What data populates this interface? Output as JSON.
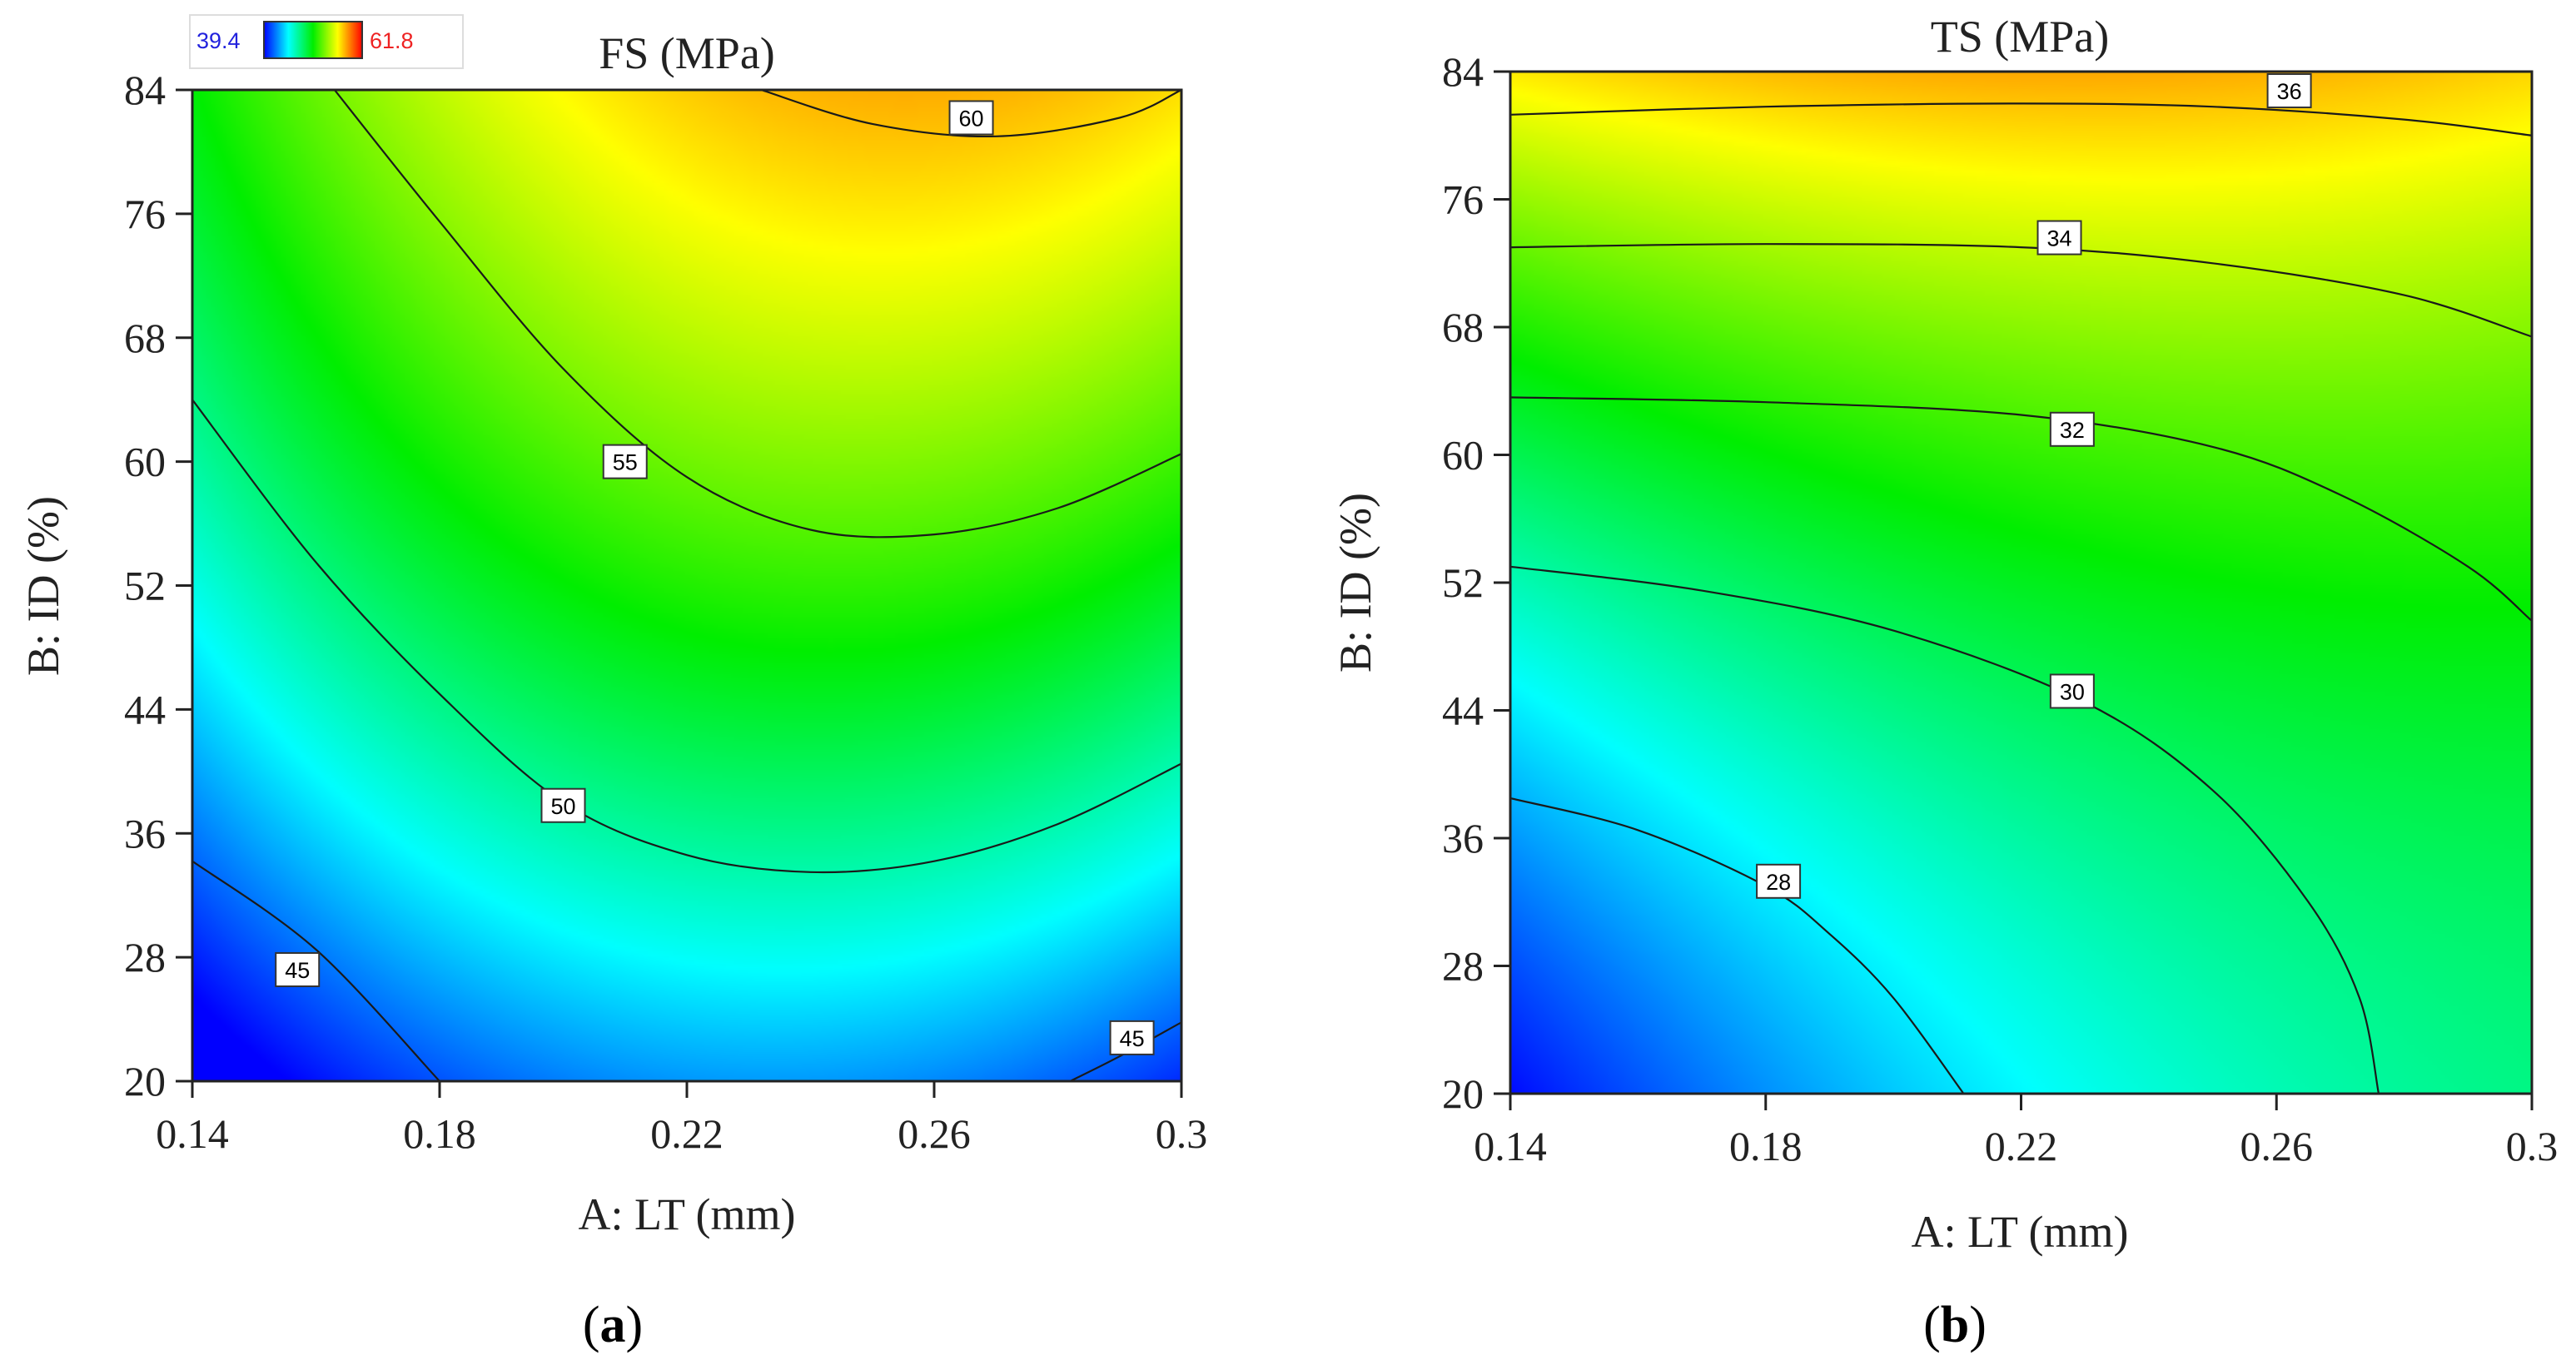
{
  "colors": {
    "blue": "#0000ff",
    "cyan": "#00ffff",
    "green": "#00ee00",
    "yellow": "#ffff00",
    "red": "#ff0000",
    "contour_line": "#1a1a1a",
    "legend_min": "#2222dd",
    "legend_max": "#ee2222"
  },
  "chart_data": [
    {
      "type": "heatmap",
      "subtype": "contour",
      "panel_label": "(a)",
      "panel_label_letter": "a",
      "title": "FS (MPa)",
      "xlabel": "A: LT (mm)",
      "ylabel": "B: ID (%)",
      "xlim": [
        0.14,
        0.3
      ],
      "ylim": [
        20,
        84
      ],
      "xticks": [
        0.14,
        0.18,
        0.22,
        0.26,
        0.3
      ],
      "xtick_labels": [
        "0.14",
        "0.18",
        "0.22",
        "0.26",
        "0.3"
      ],
      "yticks": [
        20,
        28,
        36,
        44,
        52,
        60,
        68,
        76,
        84
      ],
      "ytick_labels": [
        "20",
        "28",
        "36",
        "44",
        "52",
        "60",
        "68",
        "76",
        "84"
      ],
      "color_range": [
        39.4,
        61.8
      ],
      "legend": {
        "min_label": "39.4",
        "max_label": "61.8",
        "position": "top-left"
      },
      "model": {
        "intercept": 51.3,
        "a": 2.2,
        "b": 7.3,
        "aa": -3.6,
        "bb": -1.3,
        "ab": 1.0,
        "x_center": 0.22,
        "x_half": 0.08,
        "y_center": 52,
        "y_half": 32
      },
      "contours": [
        {
          "level": 45,
          "label": "45",
          "points": [
            [
              0.14,
              34.2
            ],
            [
              0.16,
              28.5
            ],
            [
              0.18,
              20.0
            ]
          ],
          "label_at": [
            0.157,
            27.2
          ]
        },
        {
          "level": 45,
          "label": "45",
          "points": [
            [
              0.282,
              20.0
            ],
            [
              0.29,
              21.6
            ],
            [
              0.3,
              23.8
            ]
          ],
          "label_at": [
            0.292,
            22.8
          ]
        },
        {
          "level": 50,
          "label": "50",
          "points": [
            [
              0.14,
              64.0
            ],
            [
              0.16,
              53.5
            ],
            [
              0.18,
              45.0
            ],
            [
              0.2,
              38.0
            ],
            [
              0.22,
              34.6
            ],
            [
              0.24,
              33.5
            ],
            [
              0.26,
              34.2
            ],
            [
              0.28,
              36.6
            ],
            [
              0.3,
              40.5
            ]
          ],
          "label_at": [
            0.2,
            37.8
          ]
        },
        {
          "level": 55,
          "label": "55",
          "points": [
            [
              0.163,
              84.0
            ],
            [
              0.18,
              75.5
            ],
            [
              0.2,
              66.0
            ],
            [
              0.22,
              59.0
            ],
            [
              0.24,
              55.6
            ],
            [
              0.26,
              55.3
            ],
            [
              0.28,
              57.0
            ],
            [
              0.3,
              60.5
            ]
          ],
          "label_at": [
            0.21,
            60.0
          ]
        },
        {
          "level": 60,
          "label": "60",
          "points": [
            [
              0.232,
              84.0
            ],
            [
              0.25,
              81.8
            ],
            [
              0.27,
              81.0
            ],
            [
              0.29,
              82.2
            ],
            [
              0.3,
              84.0
            ]
          ],
          "label_at": [
            0.266,
            82.2
          ]
        }
      ]
    },
    {
      "type": "heatmap",
      "subtype": "contour",
      "panel_label": "(b)",
      "panel_label_letter": "b",
      "title": "TS (MPa)",
      "xlabel": "A: LT (mm)",
      "ylabel": "B: ID (%)",
      "xlim": [
        0.14,
        0.3
      ],
      "ylim": [
        20,
        84
      ],
      "xticks": [
        0.14,
        0.18,
        0.22,
        0.26,
        0.3
      ],
      "xtick_labels": [
        "0.14",
        "0.18",
        "0.22",
        "0.26",
        "0.3"
      ],
      "yticks": [
        20,
        28,
        36,
        44,
        52,
        60,
        68,
        76,
        84
      ],
      "ytick_labels": [
        "20",
        "28",
        "36",
        "44",
        "52",
        "60",
        "68",
        "76",
        "84"
      ],
      "color_range": [
        27.0,
        37.0
      ],
      "model": {
        "intercept": 31.7,
        "a": 0.95,
        "b": 2.95,
        "aa": -0.55,
        "bb": 0.7,
        "ab": -0.85,
        "x_center": 0.22,
        "x_half": 0.08,
        "y_center": 52,
        "y_half": 32
      },
      "contours": [
        {
          "level": 28,
          "label": "28",
          "points": [
            [
              0.14,
              38.5
            ],
            [
              0.16,
              36.5
            ],
            [
              0.18,
              33.0
            ],
            [
              0.19,
              30.0
            ],
            [
              0.2,
              26.0
            ],
            [
              0.211,
              20.0
            ]
          ],
          "label_at": [
            0.182,
            33.3
          ]
        },
        {
          "level": 30,
          "label": "30",
          "points": [
            [
              0.14,
              53.0
            ],
            [
              0.17,
              51.5
            ],
            [
              0.2,
              49.0
            ],
            [
              0.23,
              44.5
            ],
            [
              0.25,
              39.0
            ],
            [
              0.265,
              32.0
            ],
            [
              0.273,
              26.0
            ],
            [
              0.276,
              20.0
            ]
          ],
          "label_at": [
            0.228,
            45.2
          ]
        },
        {
          "level": 32,
          "label": "32",
          "points": [
            [
              0.14,
              63.6
            ],
            [
              0.18,
              63.3
            ],
            [
              0.22,
              62.5
            ],
            [
              0.25,
              60.5
            ],
            [
              0.27,
              57.5
            ],
            [
              0.29,
              53.0
            ],
            [
              0.3,
              49.6
            ]
          ],
          "label_at": [
            0.228,
            61.6
          ]
        },
        {
          "level": 34,
          "label": "34",
          "points": [
            [
              0.14,
              73.0
            ],
            [
              0.18,
              73.2
            ],
            [
              0.22,
              73.0
            ],
            [
              0.25,
              72.0
            ],
            [
              0.28,
              70.0
            ],
            [
              0.3,
              67.4
            ]
          ],
          "label_at": [
            0.226,
            73.6
          ]
        },
        {
          "level": 36,
          "label": "36",
          "points": [
            [
              0.14,
              81.3
            ],
            [
              0.18,
              81.8
            ],
            [
              0.22,
              82.0
            ],
            [
              0.25,
              81.8
            ],
            [
              0.28,
              81.0
            ],
            [
              0.3,
              80.0
            ]
          ],
          "label_at": [
            0.262,
            82.8
          ]
        }
      ]
    }
  ]
}
